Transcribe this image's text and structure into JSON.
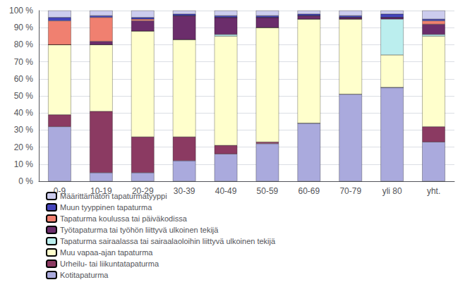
{
  "chart_data": {
    "type": "bar",
    "stacked": true,
    "categories": [
      "0-9",
      "10-19",
      "20-29",
      "30-39",
      "40-49",
      "50-59",
      "60-69",
      "70-79",
      "yli 80",
      "yht."
    ],
    "series": [
      {
        "name": "Kotitapaturma",
        "color": "#aaaadd",
        "values": [
          32,
          5,
          5,
          12,
          16,
          22,
          34,
          51,
          55,
          23
        ]
      },
      {
        "name": "Urheilu- tai liikuntatapaturma",
        "color": "#8b3a62",
        "values": [
          7,
          36,
          21,
          14,
          5,
          1,
          0,
          0,
          0,
          9
        ]
      },
      {
        "name": "Muu vapaa-ajan tapaturma",
        "color": "#ffffcc",
        "values": [
          41,
          39,
          62,
          57,
          64,
          67,
          61,
          44,
          19,
          53
        ]
      },
      {
        "name": "Tapaturma sairaalassa tai sairaalaoloihin liittyvä ulkoinen tekijä",
        "color": "#bbeeee",
        "values": [
          0,
          0,
          0,
          0,
          1,
          0,
          0,
          0,
          21,
          1
        ]
      },
      {
        "name": "Työtapaturma tai työhön liittyvä ulkoinen tekijä",
        "color": "#6b2d6b",
        "values": [
          0,
          2,
          6,
          14,
          10,
          6,
          2,
          1,
          1,
          6
        ]
      },
      {
        "name": "Tapaturma koulussa tai päiväkodissa",
        "color": "#f08070",
        "values": [
          14,
          14,
          1,
          0,
          0,
          0,
          0,
          0,
          0,
          2
        ]
      },
      {
        "name": "Muun tyyppinen tapaturma",
        "color": "#4444bb",
        "values": [
          2,
          1,
          1,
          1,
          1,
          1,
          1,
          1,
          2,
          1
        ]
      },
      {
        "name": "Määrittämätön tapaturmatyyppi",
        "color": "#ccccee",
        "values": [
          4,
          3,
          4,
          2,
          3,
          3,
          2,
          3,
          2,
          5
        ]
      }
    ],
    "ylim": [
      0,
      100
    ],
    "yticks": [
      {
        "value": 0,
        "label": "0 %"
      },
      {
        "value": 10,
        "label": "10 %"
      },
      {
        "value": 20,
        "label": "20 %"
      },
      {
        "value": 30,
        "label": "30 %"
      },
      {
        "value": 40,
        "label": "40 %"
      },
      {
        "value": 50,
        "label": "50 %"
      },
      {
        "value": 60,
        "label": "60 %"
      },
      {
        "value": 70,
        "label": "70 %"
      },
      {
        "value": 80,
        "label": "80 %"
      },
      {
        "value": 90,
        "label": "90 %"
      },
      {
        "value": 100,
        "label": "100 %"
      }
    ],
    "grid": true,
    "legend": "bottom"
  }
}
